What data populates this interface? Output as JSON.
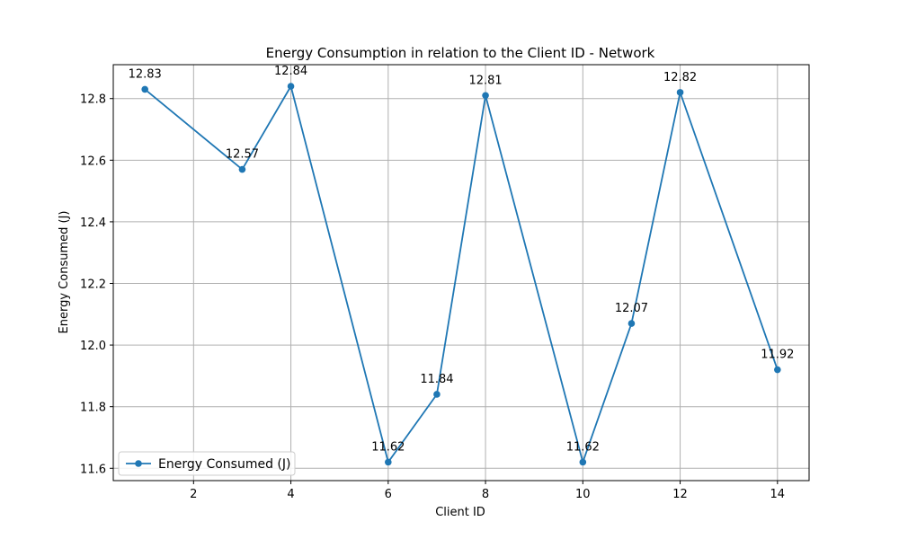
{
  "chart_data": {
    "type": "line",
    "title": "Energy Consumption in relation to the Client ID - Network",
    "xlabel": "Client ID",
    "ylabel": "Energy Consumed (J)",
    "xlim": [
      0.35,
      14.65
    ],
    "ylim": [
      11.56,
      12.91
    ],
    "xticks": [
      2,
      4,
      6,
      8,
      10,
      12,
      14
    ],
    "yticks": [
      11.6,
      11.8,
      12.0,
      12.2,
      12.4,
      12.6,
      12.8
    ],
    "grid": true,
    "legend_position": "lower-left",
    "series": [
      {
        "name": "Energy Consumed (J)",
        "color": "#1f77b4",
        "x": [
          1,
          3,
          4,
          6,
          7,
          8,
          10,
          11,
          12,
          14
        ],
        "y": [
          12.83,
          12.57,
          12.84,
          11.62,
          11.84,
          12.81,
          11.62,
          12.07,
          12.82,
          11.92
        ],
        "labels": [
          "12.83",
          "12.57",
          "12.84",
          "11.62",
          "11.84",
          "12.81",
          "11.62",
          "12.07",
          "12.82",
          "11.92"
        ]
      }
    ]
  }
}
